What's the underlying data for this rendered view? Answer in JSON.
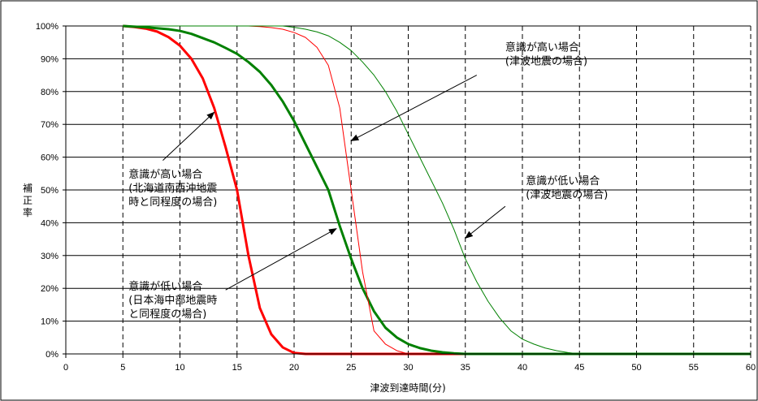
{
  "chart_data": {
    "type": "line",
    "title": "",
    "xlabel": "津波到達時間(分)",
    "ylabel": "補正率",
    "xlim": [
      0,
      60
    ],
    "ylim": [
      0,
      100
    ],
    "xticks": [
      0,
      5,
      10,
      15,
      20,
      25,
      30,
      35,
      40,
      45,
      50,
      55,
      60
    ],
    "yticks": [
      "0%",
      "10%",
      "20%",
      "30%",
      "40%",
      "50%",
      "60%",
      "70%",
      "80%",
      "90%",
      "100%"
    ],
    "grid": {
      "horizontal": "solid",
      "vertical": "dashed"
    },
    "series": [
      {
        "key": "high_hokkaido",
        "color": "#ff0000",
        "width": 3,
        "points": [
          [
            5,
            100
          ],
          [
            6,
            99.7
          ],
          [
            7,
            99.2
          ],
          [
            8,
            98.3
          ],
          [
            9,
            96.6
          ],
          [
            10,
            94
          ],
          [
            11,
            90
          ],
          [
            12,
            84
          ],
          [
            13,
            75
          ],
          [
            14,
            63
          ],
          [
            15,
            50
          ],
          [
            15.5,
            40
          ],
          [
            16,
            30
          ],
          [
            16.5,
            22
          ],
          [
            17,
            14
          ],
          [
            18,
            6
          ],
          [
            19,
            2
          ],
          [
            20,
            0.3
          ],
          [
            21,
            0
          ],
          [
            60,
            0
          ]
        ]
      },
      {
        "key": "low_nihonkai",
        "color": "#008000",
        "width": 3,
        "points": [
          [
            5,
            100
          ],
          [
            7,
            99.6
          ],
          [
            9,
            99
          ],
          [
            10,
            98.5
          ],
          [
            11,
            97.6
          ],
          [
            12,
            96.3
          ],
          [
            13,
            95
          ],
          [
            14,
            93.3
          ],
          [
            15,
            91.5
          ],
          [
            16,
            89
          ],
          [
            17,
            86
          ],
          [
            18,
            82
          ],
          [
            19,
            77
          ],
          [
            20,
            71
          ],
          [
            21,
            64
          ],
          [
            22,
            57
          ],
          [
            23,
            50
          ],
          [
            24,
            39
          ],
          [
            25,
            29
          ],
          [
            26,
            20
          ],
          [
            27,
            13
          ],
          [
            28,
            8
          ],
          [
            29,
            5
          ],
          [
            30,
            3
          ],
          [
            31,
            1.8
          ],
          [
            32,
            1
          ],
          [
            33,
            0.5
          ],
          [
            34,
            0.2
          ],
          [
            35,
            0
          ],
          [
            60,
            0
          ]
        ]
      },
      {
        "key": "high_tsunami",
        "color": "#ff0000",
        "width": 1,
        "points": [
          [
            5,
            100
          ],
          [
            16,
            100
          ],
          [
            17,
            99.8
          ],
          [
            18,
            99.5
          ],
          [
            19,
            99
          ],
          [
            20,
            98
          ],
          [
            21,
            96.5
          ],
          [
            22,
            93.5
          ],
          [
            23,
            88
          ],
          [
            24,
            75
          ],
          [
            25,
            50
          ],
          [
            26,
            25
          ],
          [
            27,
            7
          ],
          [
            28,
            3
          ],
          [
            29,
            1
          ],
          [
            30,
            0
          ],
          [
            60,
            0
          ]
        ]
      },
      {
        "key": "low_tsunami",
        "color": "#008000",
        "width": 1,
        "points": [
          [
            5,
            100
          ],
          [
            19,
            100
          ],
          [
            20,
            99.6
          ],
          [
            21,
            99
          ],
          [
            22,
            98.2
          ],
          [
            23,
            97
          ],
          [
            24,
            95
          ],
          [
            25,
            92.5
          ],
          [
            26,
            89
          ],
          [
            27,
            85
          ],
          [
            28,
            80
          ],
          [
            29,
            74
          ],
          [
            30,
            67
          ],
          [
            31,
            60
          ],
          [
            32,
            53
          ],
          [
            33,
            46
          ],
          [
            34,
            38
          ],
          [
            35,
            29
          ],
          [
            36,
            22
          ],
          [
            37,
            16
          ],
          [
            38,
            11
          ],
          [
            39,
            7
          ],
          [
            40,
            4.5
          ],
          [
            41,
            3
          ],
          [
            42,
            1.8
          ],
          [
            43,
            1
          ],
          [
            44,
            0.4
          ],
          [
            45,
            0
          ],
          [
            60,
            0
          ]
        ]
      }
    ],
    "annotations": [
      {
        "key": "a_high_tsunami",
        "lines": [
          "意識が高い場合",
          "(津波地震の場合)"
        ],
        "text_x": 38.5,
        "text_y": 92.5,
        "arrow_from": [
          36,
          85
        ],
        "arrow_to": [
          25,
          65
        ]
      },
      {
        "key": "a_low_tsunami",
        "lines": [
          "意識が低い場合",
          "(津波地震の場合)"
        ],
        "text_x": 40.3,
        "text_y": 51.7,
        "arrow_from": [
          38.5,
          45
        ],
        "arrow_to": [
          35,
          35.3
        ]
      },
      {
        "key": "a_high_hokkaido",
        "lines": [
          "意識が高い場合",
          "(北海道南西沖地震",
          "時と同程度の場合)"
        ],
        "text_x": 5.5,
        "text_y": 53.7,
        "arrow_from": [
          8.5,
          59
        ],
        "arrow_to": [
          13,
          73.7
        ]
      },
      {
        "key": "a_low_nihonkai",
        "lines": [
          "意識が低い場合",
          "(日本海中部地震時",
          "と同程度の場合)"
        ],
        "text_x": 5.5,
        "text_y": 19.5,
        "arrow_from": [
          14,
          19.5
        ],
        "arrow_to": [
          23.7,
          38.2
        ]
      }
    ]
  }
}
